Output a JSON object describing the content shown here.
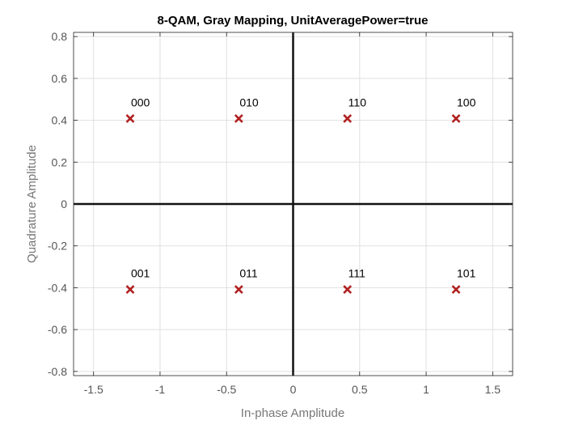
{
  "chart_data": {
    "type": "scatter",
    "title": "8-QAM, Gray Mapping, UnitAveragePower=true",
    "xlabel": "In-phase Amplitude",
    "ylabel": "Quadrature Amplitude",
    "xlim": [
      -1.65,
      1.65
    ],
    "ylim": [
      -0.82,
      0.82
    ],
    "xticks": [
      -1.5,
      -1,
      -0.5,
      0,
      0.5,
      1,
      1.5
    ],
    "xtick_labels": [
      "-1.5",
      "-1",
      "-0.5",
      "0",
      "0.5",
      "1",
      "1.5"
    ],
    "yticks": [
      -0.8,
      -0.6,
      -0.4,
      -0.2,
      0,
      0.2,
      0.4,
      0.6,
      0.8
    ],
    "ytick_labels": [
      "-0.8",
      "-0.6",
      "-0.4",
      "-0.2",
      "0",
      "0.2",
      "0.4",
      "0.6",
      "0.8"
    ],
    "grid": true,
    "marker": "x",
    "marker_color": "#b22222",
    "axis_color": "#111111",
    "points": [
      {
        "x": -1.2247,
        "y": 0.4082,
        "label": "000"
      },
      {
        "x": -0.4082,
        "y": 0.4082,
        "label": "010"
      },
      {
        "x": 0.4082,
        "y": 0.4082,
        "label": "110"
      },
      {
        "x": 1.2247,
        "y": 0.4082,
        "label": "100"
      },
      {
        "x": -1.2247,
        "y": -0.4082,
        "label": "001"
      },
      {
        "x": -0.4082,
        "y": -0.4082,
        "label": "011"
      },
      {
        "x": 0.4082,
        "y": -0.4082,
        "label": "111"
      },
      {
        "x": 1.2247,
        "y": -0.4082,
        "label": "101"
      }
    ]
  }
}
